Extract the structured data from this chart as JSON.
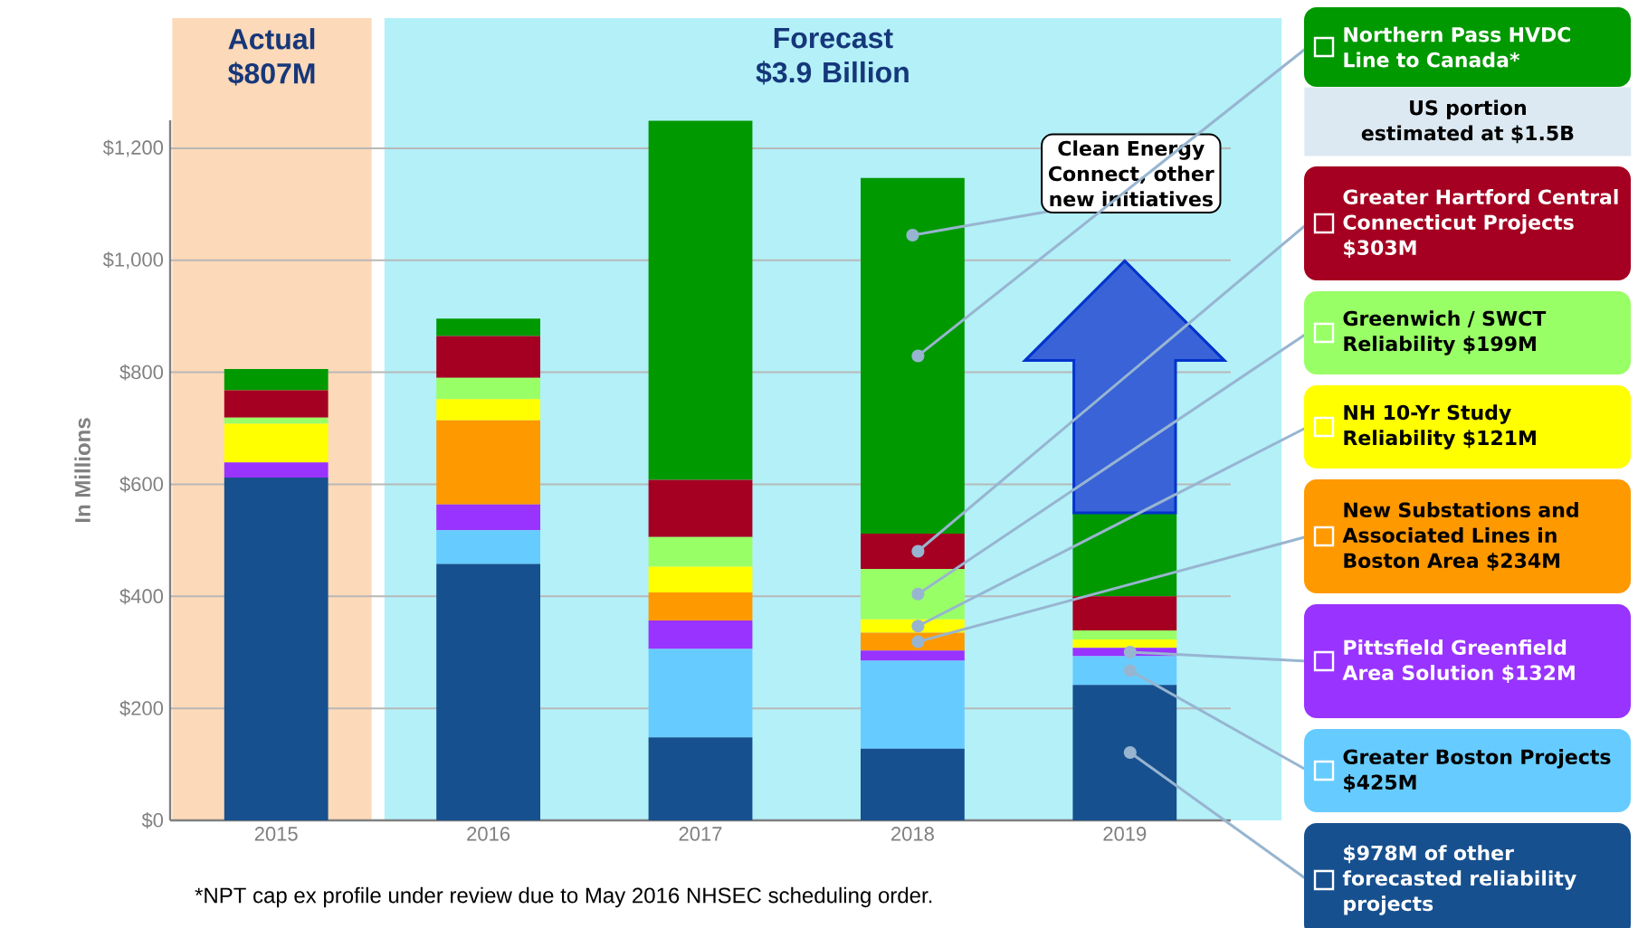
{
  "chart_data": {
    "type": "bar",
    "stacked": true,
    "ylabel": "In Millions",
    "categories": [
      "2015",
      "2016",
      "2017",
      "2018",
      "2019"
    ],
    "series": [
      {
        "name": "$978M of other forecasted reliability projects",
        "color": "#17508F",
        "values": [
          612,
          458,
          148,
          128,
          242
        ]
      },
      {
        "name": "Greater Boston Projects $425M",
        "color": "#66CCFF",
        "values": [
          null,
          60,
          158,
          157,
          51
        ]
      },
      {
        "name": "Pittsfield Greenfield Area Solution $132M",
        "color": "#9933FF",
        "values": [
          27,
          46,
          51,
          18,
          15
        ]
      },
      {
        "name": "New Substations and Associated Lines in Boston Area $234M",
        "color": "#FF9900",
        "values": [
          null,
          150,
          50,
          32,
          null
        ]
      },
      {
        "name": "NH 10-Yr Study Reliability $121M",
        "color": "#FFFF00",
        "values": [
          69,
          38,
          46,
          24,
          15
        ]
      },
      {
        "name": "Greenwich / SWCT Reliability $199M",
        "color": "#99FF66",
        "values": [
          11,
          38,
          53,
          90,
          16
        ]
      },
      {
        "name": "Greater Hartford Central Connecticut Projects $303M",
        "color": "#A50021",
        "values": [
          49,
          75,
          102,
          63,
          61
        ]
      },
      {
        "name": "Northern Pass HVDC Line to Canada*",
        "color": "#009900",
        "values": [
          38,
          31,
          641,
          635,
          149
        ]
      }
    ],
    "ylim": [
      0,
      1250
    ],
    "yticks": [
      {
        "value": 0,
        "label": "$0"
      },
      {
        "value": 200,
        "label": "$200"
      },
      {
        "value": 400,
        "label": "$400"
      },
      {
        "value": 600,
        "label": "$600"
      },
      {
        "value": 800,
        "label": "$800"
      },
      {
        "value": 1000,
        "label": "$1,000"
      },
      {
        "value": 1200,
        "label": "$1,200"
      }
    ],
    "grid": "y",
    "legend": "right",
    "bands": [
      {
        "axis": "x",
        "from": "2015",
        "to": "2015",
        "label": "Actual $807M",
        "color": "#FCD9B8"
      },
      {
        "axis": "x",
        "from": "2016",
        "to": "2019",
        "label": "Forecast $3.9 Billion",
        "color": "#B3F0F8"
      }
    ],
    "annotations": [
      {
        "text": "Clean Energy Connect, other new initiatives",
        "x": "2018",
        "y": 1045
      },
      "US portion estimated at $1.5B",
      "*NPT cap ex profile under review due to May 2016 NHSEC scheduling order."
    ]
  }
}
